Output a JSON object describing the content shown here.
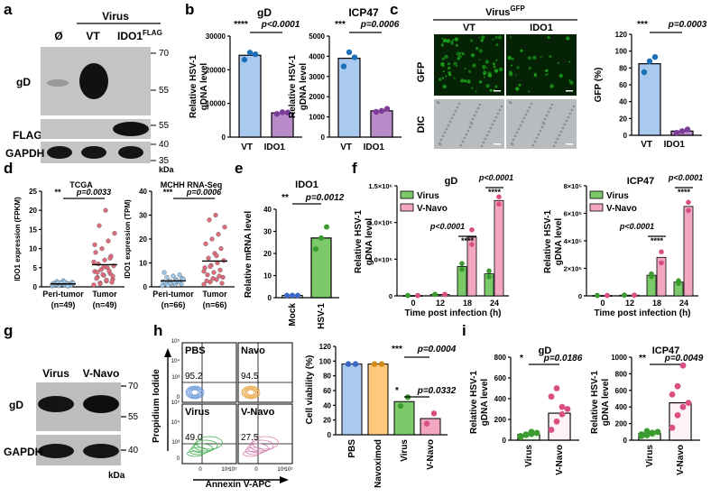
{
  "panels": {
    "a": {
      "letter": "a",
      "header_virus": "Virus",
      "lanes": [
        "Ø",
        "VT",
        "IDO1"
      ],
      "flag_sup": "FLAG",
      "blots": [
        {
          "label": "gD",
          "markers": [
            "70",
            "55"
          ]
        },
        {
          "label": "FLAG",
          "markers": [
            "55"
          ]
        },
        {
          "label": "GAPDH",
          "markers": [
            "40",
            "35"
          ]
        }
      ],
      "kda": "kDa"
    },
    "b": {
      "letter": "b",
      "ylabel": "Relative HSV-1 gDNA level",
      "charts": [
        {
          "title": "gD",
          "stars": "****",
          "p": "p<0.0001",
          "ticks": [
            "0",
            "10000",
            "20000",
            "30000"
          ]
        },
        {
          "title": "ICP47",
          "stars": "***",
          "p": "p=0.0006",
          "ticks": [
            "0",
            "1000",
            "2000",
            "3000",
            "4000",
            "5000"
          ]
        }
      ],
      "cats": [
        "VT",
        "IDO1"
      ]
    },
    "c": {
      "letter": "c",
      "header": "Virus",
      "header_sup": "GFP",
      "cols": [
        "VT",
        "IDO1"
      ],
      "rows": [
        "GFP",
        "DIC"
      ],
      "ylabel": "GFP (%)",
      "stars": "***",
      "p": "p=0.0003",
      "ticks": [
        "0",
        "20",
        "40",
        "60",
        "80",
        "100",
        "120"
      ],
      "cats": [
        "VT",
        "IDO1"
      ]
    },
    "d": {
      "letter": "d",
      "charts": [
        {
          "title": "TCGA",
          "ylabel": "IDO1 expression (FPKM)",
          "stars": "**",
          "p": "p=0.0033",
          "ticks": [
            "0",
            "5",
            "10",
            "15",
            "20",
            "25"
          ],
          "cats": [
            "Peri-tumor",
            "Tumor"
          ],
          "ns": [
            "(n=49)",
            "(n=49)"
          ]
        },
        {
          "title": "MCHH RNA-Seq",
          "ylabel": "IDO1 expression (TPM)",
          "stars": "***",
          "p": "p=0.0006",
          "ticks": [
            "0",
            "10",
            "20",
            "30",
            "40"
          ],
          "cats": [
            "Peri-tumor",
            "Tumor"
          ],
          "ns": [
            "(n=66)",
            "(n=66)"
          ]
        }
      ]
    },
    "e": {
      "letter": "e",
      "title": "IDO1",
      "ylabel": "Relative mRNA level",
      "stars": "**",
      "p": "p=0.0012",
      "ticks": [
        "0",
        "10",
        "20",
        "30",
        "40"
      ],
      "cats": [
        "Mock",
        "HSV-1"
      ]
    },
    "f": {
      "letter": "f",
      "ylabel": "Relative HSV-1 gDNA level",
      "xlabel": "Time post infection (h)",
      "legend": [
        "Virus",
        "V-Navo"
      ],
      "charts": [
        {
          "title": "gD",
          "ticks": [
            "0",
            "5.0×10⁵",
            "1.0×10⁶",
            "1.5×10⁶"
          ],
          "p1": "p<0.0001",
          "s1": "****",
          "p2": "p<0.0001",
          "s2": "****"
        },
        {
          "title": "ICP47",
          "ticks": [
            "0",
            "2×10⁵",
            "4×10⁵",
            "6×10⁵",
            "8×10⁵"
          ],
          "p1": "p<0.0001",
          "s1": "****",
          "p2": "p<0.0001",
          "s2": "****"
        }
      ],
      "xcats": [
        "0",
        "12",
        "18",
        "24"
      ]
    },
    "g": {
      "letter": "g",
      "lanes": [
        "Virus",
        "V-Navo"
      ],
      "blots": [
        {
          "label": "gD",
          "markers": [
            "70",
            "55"
          ]
        },
        {
          "label": "GAPDH",
          "markers": [
            "40"
          ]
        }
      ],
      "kda": "kDa"
    },
    "h": {
      "letter": "h",
      "quads": [
        {
          "name": "PBS",
          "value": "95.2"
        },
        {
          "name": "Navo",
          "value": "94.5"
        },
        {
          "name": "Virus",
          "value": "49.0"
        },
        {
          "name": "V-Navo",
          "value": "27.5"
        }
      ],
      "yaxis_label": "Propidium Iodide",
      "xaxis_label": "Annexin V-APC",
      "ylab_ticks": [
        "10⁵",
        "10⁴",
        "10³",
        "0"
      ],
      "xlab_ticks": [
        "0",
        "10⁴",
        "10⁵"
      ],
      "bar_ylabel": "Cell viability (%)",
      "bar_ticks": [
        "0",
        "20",
        "40",
        "60",
        "80",
        "100",
        "120"
      ],
      "bar_cats": [
        "PBS",
        "Navoximod",
        "Virus",
        "V-Navo"
      ],
      "sig1_stars": "***",
      "sig1_p": "p=0.0004",
      "sig2_stars": "*",
      "sig2_p": "p=0.0332"
    },
    "i": {
      "letter": "i",
      "ylabel": "Relative HSV-1 gDNA level",
      "charts": [
        {
          "title": "gD",
          "stars": "*",
          "p": "p=0.0186",
          "ticks": [
            "0",
            "200",
            "400",
            "600",
            "800"
          ]
        },
        {
          "title": "ICP47",
          "stars": "**",
          "p": "p=0.0049",
          "ticks": [
            "0",
            "200",
            "400",
            "600",
            "800",
            "1000"
          ]
        }
      ],
      "cats": [
        "Virus",
        "V-Navo"
      ]
    }
  },
  "colors": {
    "blue": "#a9c9ee",
    "purple": "#b98ac8",
    "green": "#7cc96a",
    "pink": "#f3a6c2",
    "orange": "#ffc87a",
    "gfp": "#1fae1f"
  },
  "chart_data": [
    {
      "type": "bar",
      "title": "gD",
      "categories": [
        "VT",
        "IDO1"
      ],
      "values": [
        24300,
        7200
      ],
      "ylim": [
        0,
        30000
      ],
      "points": [
        [
          23000,
          25100,
          24600
        ],
        [
          6900,
          7400,
          7300
        ]
      ]
    },
    {
      "type": "bar",
      "title": "ICP47",
      "categories": [
        "VT",
        "IDO1"
      ],
      "values": [
        3900,
        1300
      ],
      "ylim": [
        0,
        5000
      ],
      "points": [
        [
          3500,
          4200,
          3950
        ],
        [
          1250,
          1300,
          1400
        ]
      ]
    },
    {
      "type": "bar",
      "title": "",
      "categories": [
        "VT",
        "IDO1"
      ],
      "values": [
        85,
        5
      ],
      "ylim": [
        0,
        120
      ],
      "points": [
        [
          75,
          88,
          93
        ],
        [
          3,
          5,
          7
        ]
      ]
    },
    {
      "type": "scatter",
      "title": "TCGA",
      "categories": [
        "Peri-tumor",
        "Tumor"
      ],
      "ylim": [
        0,
        25
      ],
      "points": [
        [
          0.2,
          0.3,
          0.4,
          0.5,
          0.6,
          0.7,
          0.8,
          0.9,
          1.0,
          1.1,
          1.2,
          1.4,
          1.6,
          0.3,
          0.5,
          0.6,
          0.8,
          0.9,
          1.1,
          1.3,
          0.4,
          0.7,
          1.0,
          0.2,
          0.6
        ],
        [
          0.5,
          1.0,
          1.5,
          2.0,
          2.5,
          3.0,
          3.5,
          4.0,
          4.5,
          5.0,
          5.5,
          6.0,
          7.0,
          8.0,
          9.0,
          10.0,
          12.0,
          14.0,
          16.0,
          20.0,
          1.2,
          2.2,
          3.2,
          4.2,
          6.5,
          0.8,
          1.8,
          2.8,
          3.8,
          5.2,
          7.5,
          11.0
        ]
      ]
    },
    {
      "type": "scatter",
      "title": "MCHH RNA-Seq",
      "categories": [
        "Peri-tumor",
        "Tumor"
      ],
      "ylim": [
        0,
        40
      ],
      "points": [
        [
          0.5,
          0.8,
          1.0,
          1.2,
          1.5,
          1.8,
          2.0,
          2.2,
          2.5,
          3.0,
          3.5,
          4.0,
          4.5,
          5.0,
          6.0,
          1.3,
          2.7,
          3.2,
          0.7,
          1.9
        ],
        [
          1.0,
          2.0,
          3.0,
          4.0,
          5.0,
          6.0,
          7.0,
          8.0,
          9.0,
          10.0,
          11.0,
          12.0,
          14.0,
          16.0,
          18.0,
          20.0,
          22.0,
          25.0,
          28.0,
          30.0,
          1.5,
          2.5,
          3.5,
          4.5,
          6.5,
          8.5,
          13.0
        ]
      ]
    },
    {
      "type": "bar",
      "title": "IDO1",
      "categories": [
        "Mock",
        "HSV-1"
      ],
      "values": [
        1,
        27
      ],
      "ylim": [
        0,
        40
      ],
      "points": [
        [
          1,
          1,
          1
        ],
        [
          22,
          27,
          32
        ]
      ]
    },
    {
      "type": "bar",
      "title": "gD",
      "categories": [
        "0",
        "12",
        "18",
        "24"
      ],
      "ylim": [
        0,
        1500000
      ],
      "series": [
        {
          "name": "Virus",
          "values": [
            5000,
            20000,
            400000,
            300000
          ],
          "points": [
            [
              4000,
              6000
            ],
            [
              18000,
              22000
            ],
            [
              360000,
              440000
            ],
            [
              260000,
              340000
            ]
          ]
        },
        {
          "name": "V-Navo",
          "values": [
            5000,
            20000,
            800000,
            1300000
          ],
          "points": [
            [
              4000,
              6000
            ],
            [
              18000,
              22000
            ],
            [
              700000,
              900000
            ],
            [
              1250000,
              1350000
            ]
          ]
        }
      ]
    },
    {
      "type": "bar",
      "title": "ICP47",
      "categories": [
        "0",
        "12",
        "18",
        "24"
      ],
      "ylim": [
        0,
        800000
      ],
      "series": [
        {
          "name": "Virus",
          "values": [
            3000,
            5000,
            150000,
            100000
          ],
          "points": [
            [
              2500,
              3500
            ],
            [
              4000,
              6000
            ],
            [
              140000,
              160000
            ],
            [
              90000,
              110000
            ]
          ]
        },
        {
          "name": "V-Navo",
          "values": [
            3000,
            5000,
            280000,
            650000
          ],
          "points": [
            [
              2500,
              3500
            ],
            [
              4000,
              6000
            ],
            [
              240000,
              320000
            ],
            [
              620000,
              680000
            ]
          ]
        }
      ]
    },
    {
      "type": "bar",
      "title": "",
      "categories": [
        "PBS",
        "Navoximod",
        "Virus",
        "V-Navo"
      ],
      "values": [
        96,
        96,
        45,
        22
      ],
      "ylim": [
        0,
        120
      ],
      "points": [
        [
          96,
          96
        ],
        [
          96,
          96
        ],
        [
          39,
          51
        ],
        [
          15,
          29
        ]
      ]
    },
    {
      "type": "bar",
      "title": "gD",
      "categories": [
        "Virus",
        "V-Navo"
      ],
      "values": [
        55,
        260
      ],
      "ylim": [
        0,
        800
      ],
      "points": [
        [
          40,
          50,
          60,
          70,
          30,
          55,
          80
        ],
        [
          100,
          180,
          250,
          300,
          420,
          500,
          320
        ]
      ]
    },
    {
      "type": "bar",
      "title": "ICP47",
      "categories": [
        "Virus",
        "V-Navo"
      ],
      "values": [
        80,
        450
      ],
      "ylim": [
        0,
        1000
      ],
      "points": [
        [
          50,
          60,
          90,
          100,
          70,
          110,
          80
        ],
        [
          150,
          300,
          400,
          450,
          550,
          650,
          900
        ]
      ]
    }
  ]
}
